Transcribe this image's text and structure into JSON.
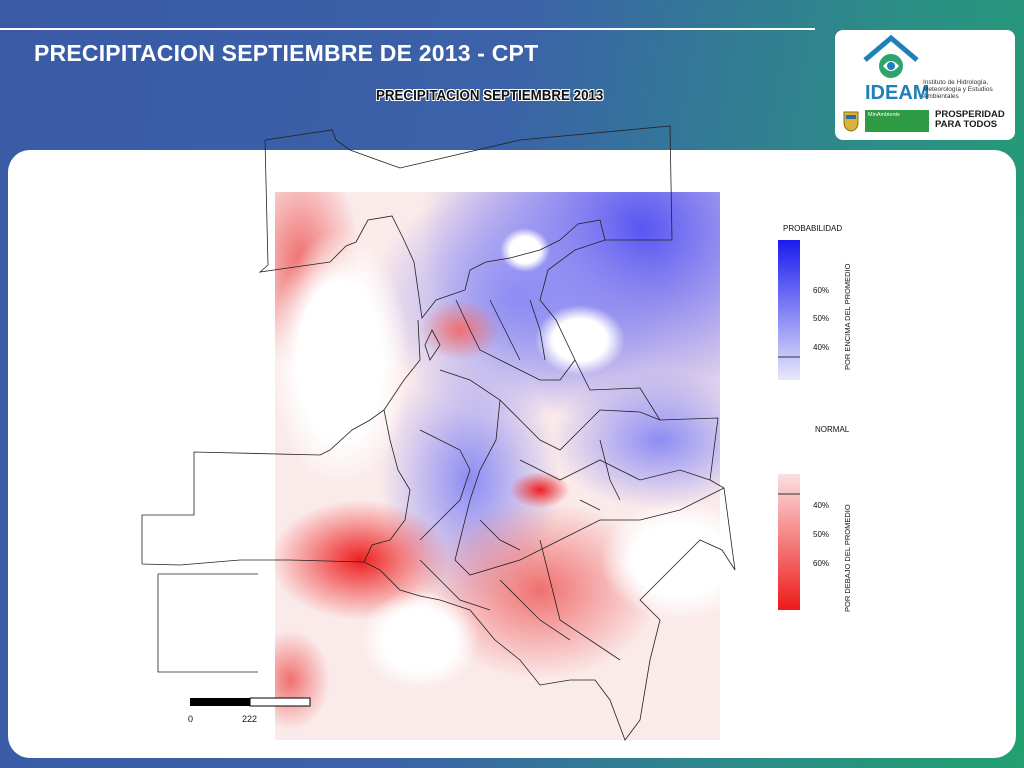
{
  "slide": {
    "title": "PRECIPITACION SEPTIEMBRE DE 2013 - CPT"
  },
  "map": {
    "title": "PRECIPITACION SEPTIEMBRE 2013",
    "region": "Colombia",
    "scale_bar": {
      "start_label": "0",
      "end_label": "222"
    }
  },
  "legend": {
    "probability_title": "PROBABILIDAD",
    "above": {
      "axis_label": "POR ENCIMA DEL PROMEDIO",
      "ticks": [
        "60%",
        "50%",
        "40%"
      ],
      "color": "#1a1aee"
    },
    "normal_label": "NORMAL",
    "below": {
      "axis_label": "POR DEBAJO DEL PROMEDIO",
      "ticks": [
        "40%",
        "50%",
        "60%"
      ],
      "color": "#ee1a1a"
    }
  },
  "logo": {
    "name": "IDEAM",
    "subtitle": "Instituto de Hidrología, Meteorología y Estudios Ambientales",
    "ministry": "MinAmbiente",
    "slogan": "PROSPERIDAD PARA TODOS",
    "icon": "ideam-house-icon"
  }
}
